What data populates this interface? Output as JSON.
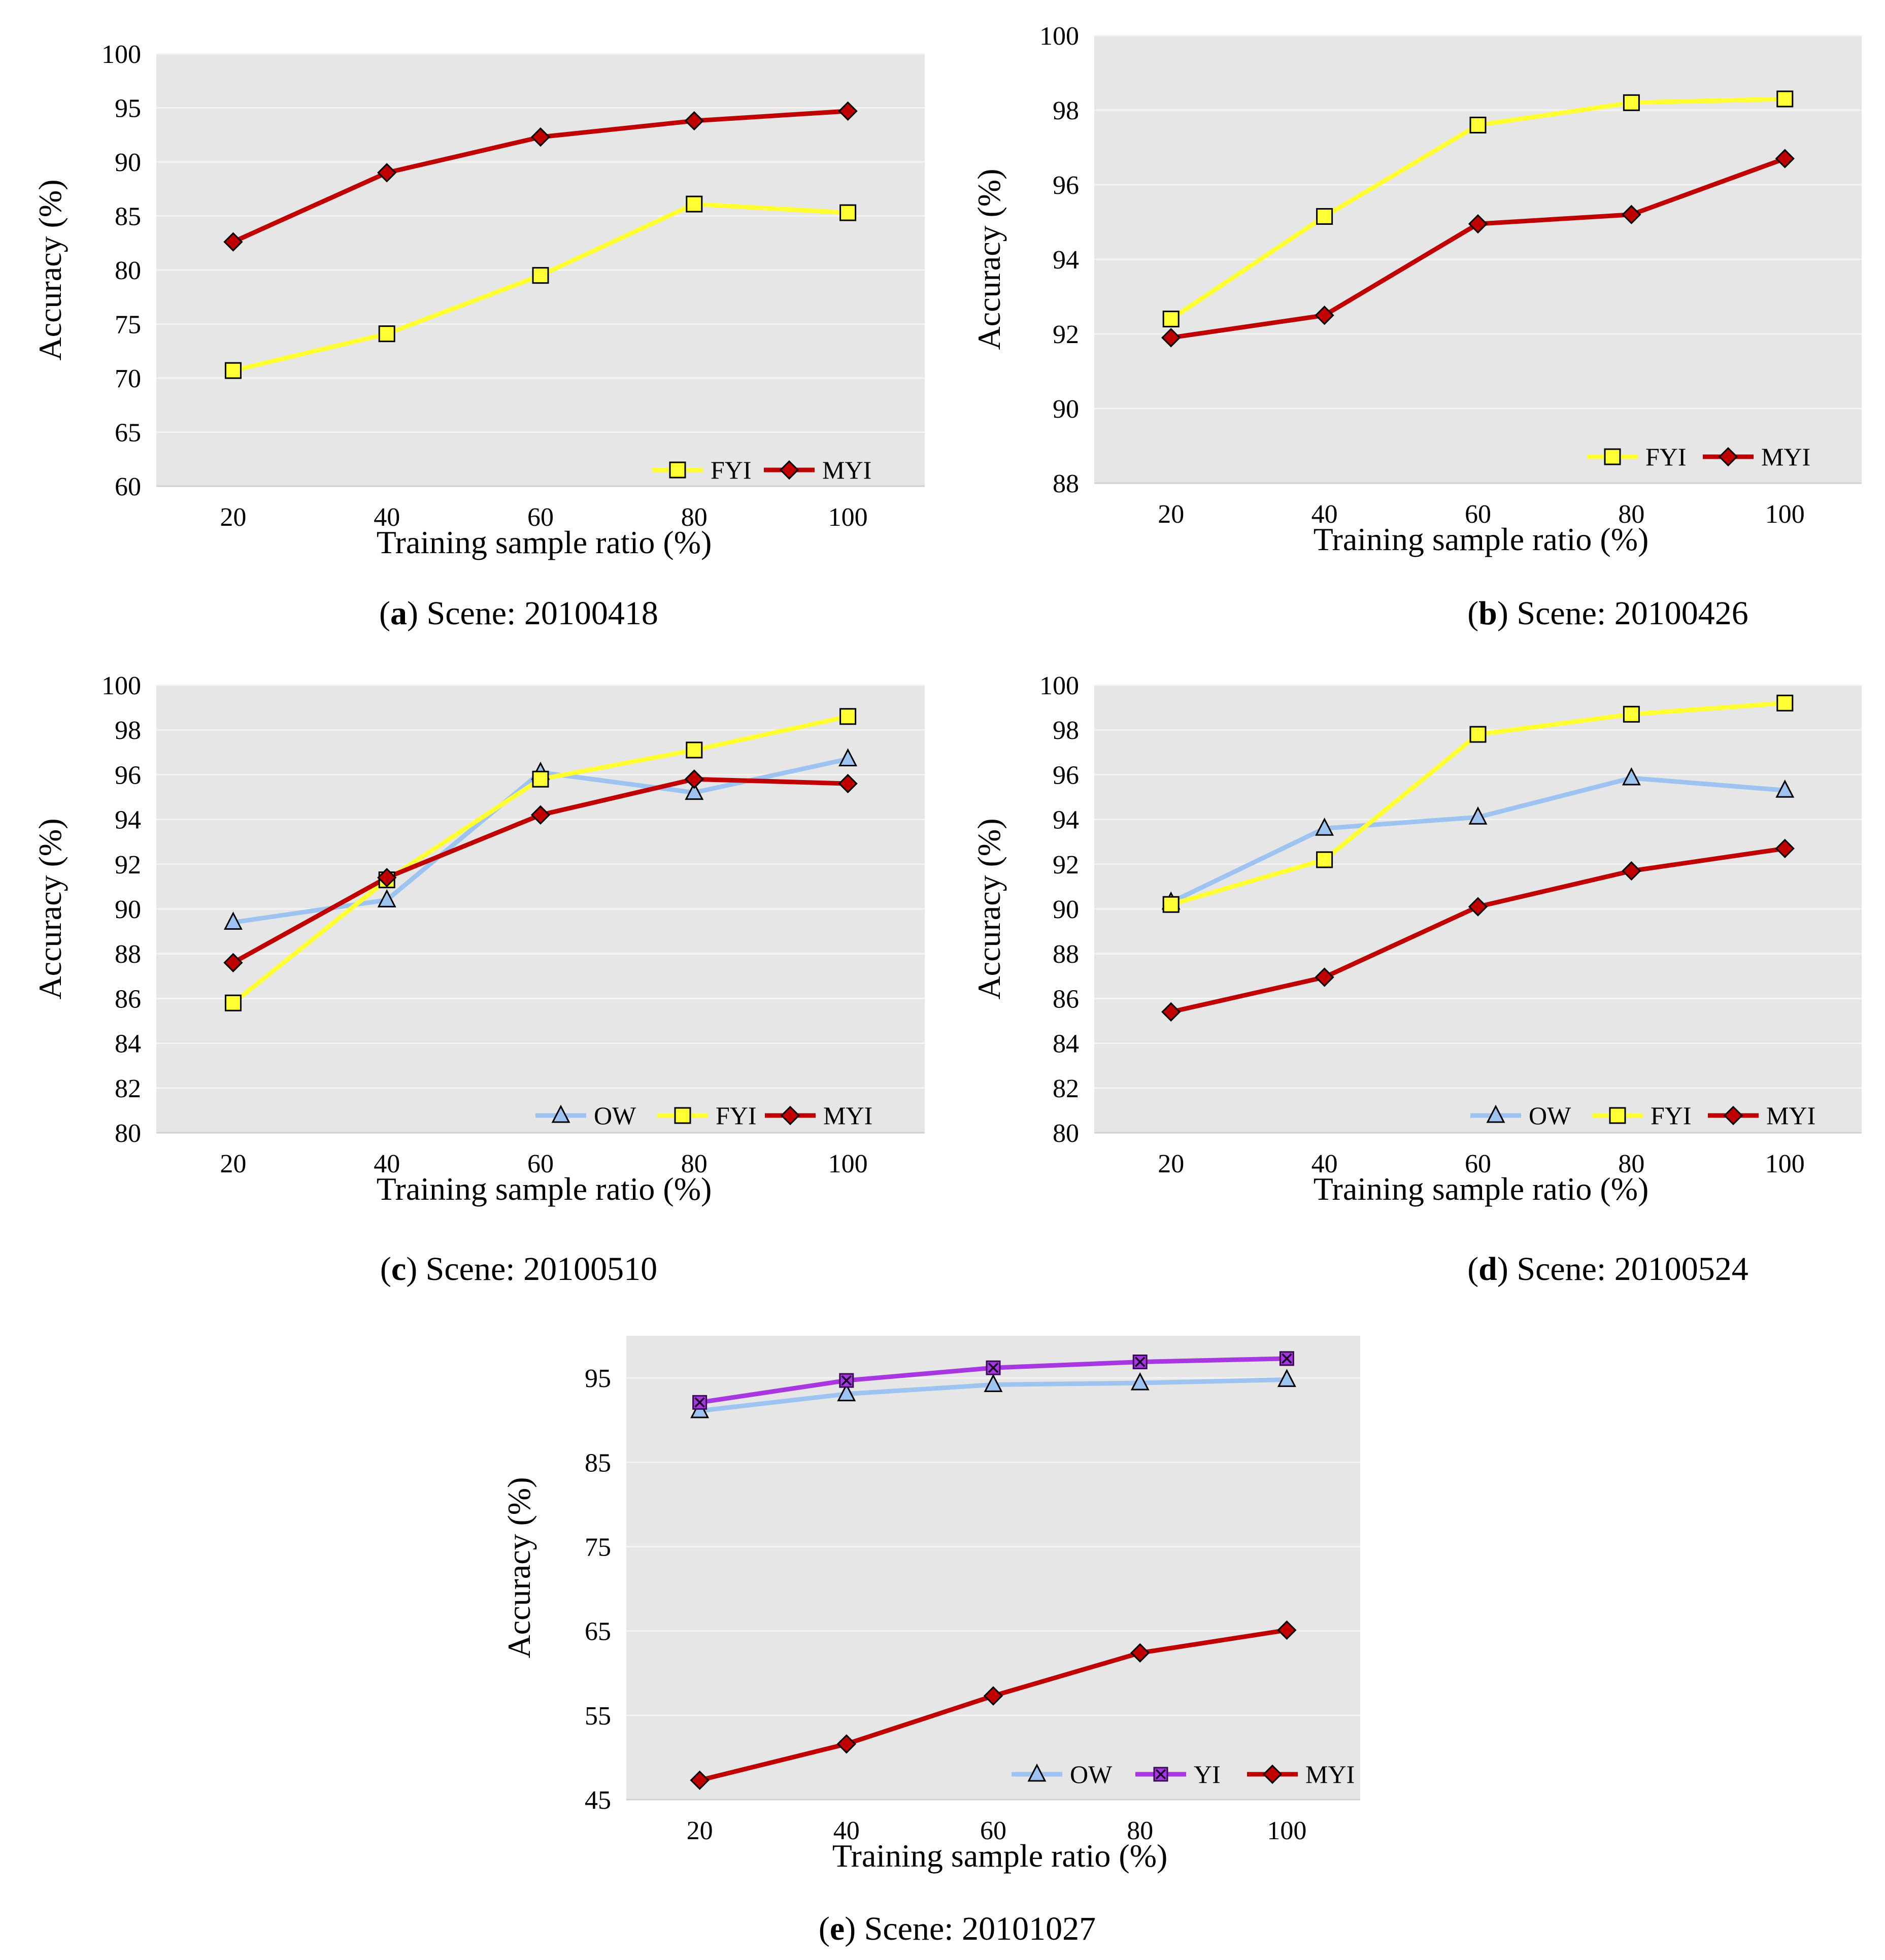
{
  "figure": {
    "colors": {
      "OW": "#9dc3f0",
      "FYI": "#ffff33",
      "YI": "#a737e0",
      "MYI": "#c00000",
      "plot_bg": "#e6e6e6",
      "grid": "#f4f4f4"
    },
    "markers": {
      "OW": "triangle",
      "FYI": "square",
      "YI": "cross-square",
      "MYI": "diamond"
    }
  },
  "chart_data": [
    {
      "id": "a",
      "type": "line",
      "caption_letter": "a",
      "caption_text": "Scene: 20100418",
      "xlabel": "Training sample ratio (%)",
      "ylabel": "Accuracy (%)",
      "categories": [
        "20",
        "40",
        "60",
        "80",
        "100"
      ],
      "ylim": [
        60,
        100
      ],
      "yticks": [
        "60",
        "65",
        "70",
        "75",
        "80",
        "85",
        "90",
        "95",
        "100"
      ],
      "series": [
        {
          "name": "FYI",
          "values": [
            70.7,
            74.1,
            79.5,
            86.1,
            85.3
          ]
        },
        {
          "name": "MYI",
          "values": [
            82.6,
            89.0,
            92.3,
            93.8,
            94.7
          ]
        }
      ]
    },
    {
      "id": "b",
      "type": "line",
      "caption_letter": "b",
      "caption_text": "Scene: 20100426",
      "xlabel": "Training sample ratio (%)",
      "ylabel": "Accuracy (%)",
      "categories": [
        "20",
        "40",
        "60",
        "80",
        "100"
      ],
      "ylim": [
        88,
        100
      ],
      "yticks": [
        "88",
        "90",
        "92",
        "94",
        "96",
        "98",
        "100"
      ],
      "series": [
        {
          "name": "FYI",
          "values": [
            92.4,
            95.15,
            97.6,
            98.2,
            98.3
          ]
        },
        {
          "name": "MYI",
          "values": [
            91.9,
            92.5,
            94.95,
            95.2,
            96.7
          ]
        }
      ]
    },
    {
      "id": "c",
      "type": "line",
      "caption_letter": "c",
      "caption_text": "Scene: 20100510",
      "xlabel": "Training sample ratio (%)",
      "ylabel": "Accuracy (%)",
      "categories": [
        "20",
        "40",
        "60",
        "80",
        "100"
      ],
      "ylim": [
        80,
        100
      ],
      "yticks": [
        "80",
        "82",
        "84",
        "86",
        "88",
        "90",
        "92",
        "94",
        "96",
        "98",
        "100"
      ],
      "series": [
        {
          "name": "OW",
          "values": [
            89.4,
            90.4,
            96.1,
            95.2,
            96.7
          ]
        },
        {
          "name": "FYI",
          "values": [
            85.8,
            91.3,
            95.8,
            97.1,
            98.6
          ]
        },
        {
          "name": "MYI",
          "values": [
            87.6,
            91.4,
            94.2,
            95.8,
            95.6
          ]
        }
      ]
    },
    {
      "id": "d",
      "type": "line",
      "caption_letter": "d",
      "caption_text": "Scene: 20100524",
      "xlabel": "Training sample ratio (%)",
      "ylabel": "Accuracy (%)",
      "categories": [
        "20",
        "40",
        "60",
        "80",
        "100"
      ],
      "ylim": [
        80,
        100
      ],
      "yticks": [
        "80",
        "82",
        "84",
        "86",
        "88",
        "90",
        "92",
        "94",
        "96",
        "98",
        "100"
      ],
      "series": [
        {
          "name": "OW",
          "values": [
            90.3,
            93.6,
            94.1,
            95.85,
            95.3
          ]
        },
        {
          "name": "FYI",
          "values": [
            90.2,
            92.2,
            97.8,
            98.7,
            99.2
          ]
        },
        {
          "name": "MYI",
          "values": [
            85.4,
            86.95,
            90.1,
            91.7,
            92.7
          ]
        }
      ]
    },
    {
      "id": "e",
      "type": "line",
      "caption_letter": "e",
      "caption_text": "Scene: 20101027",
      "xlabel": "Training sample ratio (%)",
      "ylabel": "Accuracy (%)",
      "categories": [
        "20",
        "40",
        "60",
        "80",
        "100"
      ],
      "ylim": [
        45,
        100
      ],
      "yticks": [
        "45",
        "55",
        "65",
        "75",
        "85",
        "95"
      ],
      "series": [
        {
          "name": "OW",
          "values": [
            91.1,
            93.1,
            94.2,
            94.4,
            94.8
          ]
        },
        {
          "name": "YI",
          "values": [
            92.1,
            94.7,
            96.2,
            96.9,
            97.3
          ]
        },
        {
          "name": "MYI",
          "values": [
            47.3,
            51.6,
            57.3,
            62.4,
            65.1
          ]
        }
      ]
    }
  ]
}
